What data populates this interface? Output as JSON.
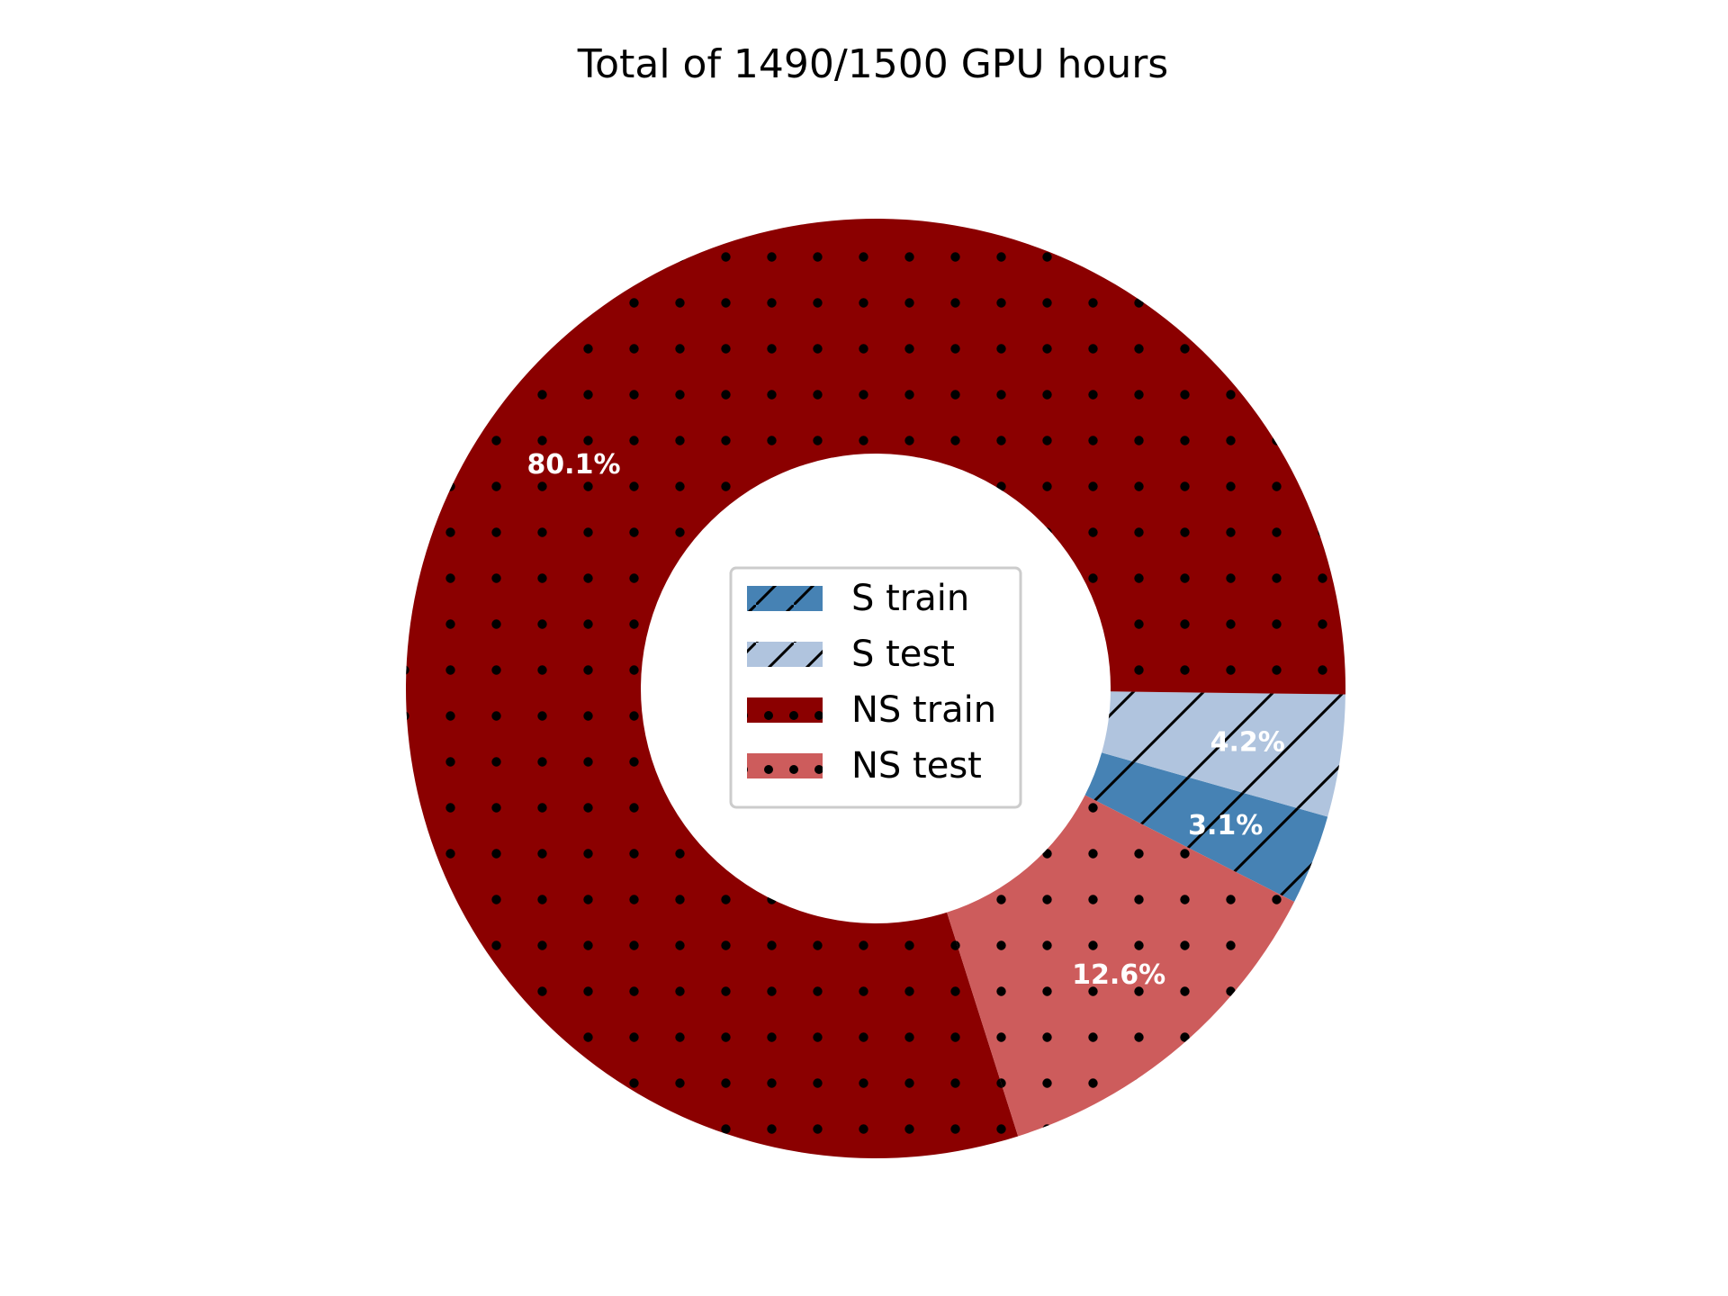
{
  "chart_data": {
    "type": "pie",
    "title": "Total of 1490/1500 GPU hours",
    "donut": true,
    "legend_placement": "center",
    "slices": [
      {
        "label": "S train",
        "percent": 3.1,
        "label_text": "3.1%",
        "color": "#4682b4",
        "pattern": "hatch"
      },
      {
        "label": "S test",
        "percent": 4.2,
        "label_text": "4.2%",
        "color": "#b0c4de",
        "pattern": "hatch"
      },
      {
        "label": "NS train",
        "percent": 80.1,
        "label_text": "80.1%",
        "color": "#8b0000",
        "pattern": "dots"
      },
      {
        "label": "NS test",
        "percent": 12.6,
        "label_text": "12.6%",
        "color": "#cd5c5c",
        "pattern": "dots"
      }
    ]
  }
}
